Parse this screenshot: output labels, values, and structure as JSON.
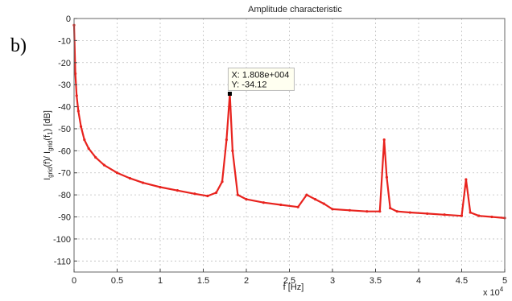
{
  "panel_label": "b)",
  "chart_data": {
    "type": "line",
    "title": "Amplitude characteristic",
    "xlabel": "f [Hz]",
    "ylabel_parts": {
      "main": "I",
      "sub1": "grid",
      "mid": "(f)/ I",
      "sub2": "grid",
      "tail1": "(f",
      "sub3": "1",
      "tail2": ") [dB]"
    },
    "x_exponent_label": "x 10",
    "x_exponent_power": "4",
    "xlim": [
      0,
      50000
    ],
    "ylim": [
      -115,
      0
    ],
    "x_ticks": [
      0,
      5000,
      10000,
      15000,
      20000,
      25000,
      30000,
      35000,
      40000,
      45000,
      50000
    ],
    "x_tick_labels": [
      "0",
      "0.5",
      "1",
      "1.5",
      "2",
      "2.5",
      "3",
      "3.5",
      "4",
      "4.5",
      "5"
    ],
    "y_ticks": [
      0,
      -10,
      -20,
      -30,
      -40,
      -50,
      -60,
      -70,
      -80,
      -90,
      -100,
      -110
    ],
    "y_tick_labels": [
      "0",
      "-10",
      "-20",
      "-30",
      "-40",
      "-50",
      "-60",
      "-70",
      "-80",
      "-90",
      "-100",
      "-110"
    ],
    "grid": true,
    "series_color": "#e8231e",
    "series": [
      {
        "x": [
          0,
          150,
          300,
          500,
          800,
          1200,
          1700,
          2500,
          3500,
          5000,
          6500,
          8000,
          10000,
          12000,
          14000,
          15500,
          16500,
          17200,
          17700,
          18080,
          18400,
          19000,
          20000,
          22000,
          24000,
          26000,
          27000,
          28000,
          29000,
          30000,
          32000,
          34000,
          35500,
          36000,
          36300,
          36700,
          37500,
          39000,
          41000,
          43000,
          45000,
          45500,
          46000,
          47000,
          48500,
          50000
        ],
        "y": [
          -3,
          -25,
          -35,
          -42,
          -49,
          -55,
          -59,
          -63,
          -66.5,
          -70,
          -72.5,
          -74.5,
          -76.5,
          -78,
          -79.5,
          -80.5,
          -79,
          -74,
          -55,
          -34.12,
          -60,
          -80,
          -82,
          -83.5,
          -84.5,
          -85.5,
          -80,
          -82,
          -84,
          -86.5,
          -87,
          -87.5,
          -87.5,
          -55,
          -72,
          -86,
          -87.5,
          -88,
          -88.5,
          -89,
          -89.5,
          -73,
          -88,
          -89.5,
          -90,
          -90.5
        ]
      }
    ],
    "datatip": {
      "x_text": "X: 1.808e+004",
      "y_text": "Y: -34.12",
      "x": 18080,
      "y": -34.12
    }
  }
}
